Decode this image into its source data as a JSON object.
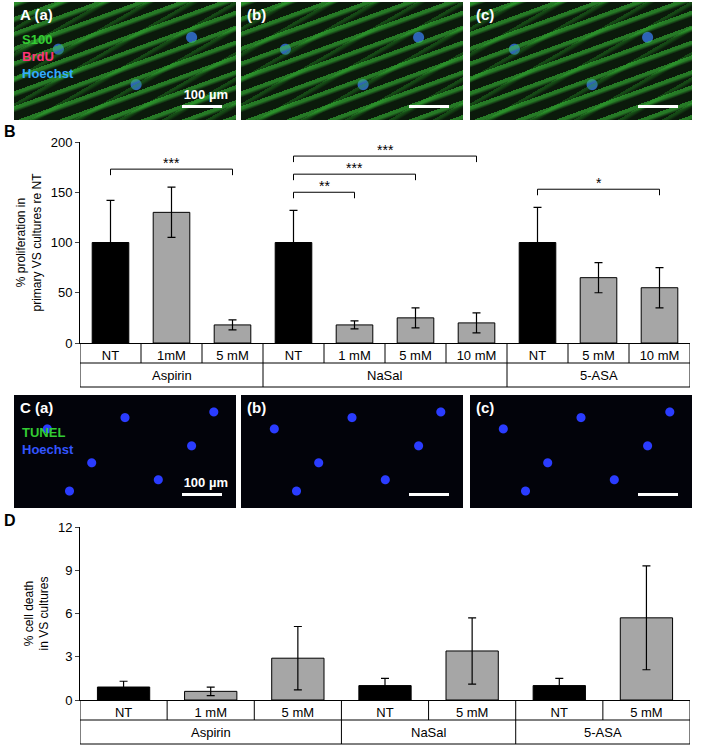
{
  "image_panels": [
    {
      "label": "A",
      "images": [
        "(a)",
        "(b)",
        "(c)"
      ],
      "stains": [
        {
          "name": "S100",
          "color": "#33cc33"
        },
        {
          "name": "BrdU",
          "color": "#ff3377"
        },
        {
          "name": "Hoechst",
          "color": "#33aaff"
        }
      ],
      "scale_bar": "100 µm"
    },
    {
      "label": "C",
      "images": [
        "(a)",
        "(b)",
        "(c)"
      ],
      "stains": [
        {
          "name": "TUNEL",
          "color": "#33cc33"
        },
        {
          "name": "Hoechst",
          "color": "#3355ff"
        }
      ],
      "scale_bar": "100 µm"
    }
  ],
  "chart_data": [
    {
      "type": "bar",
      "panel": "B",
      "ylabel": "% proliferation in primary VS cultures re NT",
      "categories": [
        "NT",
        "1mM",
        "5 mM",
        "NT",
        "1 mM",
        "5 mM",
        "10 mM",
        "NT",
        "5 mM",
        "10 mM"
      ],
      "groups": [
        "Aspirin",
        "Aspirin",
        "Aspirin",
        "NaSal",
        "NaSal",
        "NaSal",
        "NaSal",
        "5-ASA",
        "5-ASA",
        "5-ASA"
      ],
      "values": [
        100,
        130,
        18,
        100,
        18,
        25,
        20,
        100,
        65,
        55
      ],
      "errors": [
        42,
        25,
        5,
        32,
        4,
        10,
        10,
        35,
        15,
        20
      ],
      "colors": [
        "#000000",
        "#a6a6a6",
        "#a6a6a6",
        "#000000",
        "#a6a6a6",
        "#a6a6a6",
        "#a6a6a6",
        "#000000",
        "#a6a6a6",
        "#a6a6a6"
      ],
      "ylim": [
        0,
        200
      ],
      "yticks": [
        0,
        50,
        100,
        150,
        200
      ],
      "significance": [
        {
          "from": 0,
          "to": 2,
          "label": "***"
        },
        {
          "from": 3,
          "to": 4,
          "label": "**"
        },
        {
          "from": 3,
          "to": 5,
          "label": "***"
        },
        {
          "from": 3,
          "to": 6,
          "label": "***"
        },
        {
          "from": 7,
          "to": 9,
          "label": "*"
        }
      ]
    },
    {
      "type": "bar",
      "panel": "D",
      "ylabel": "% cell death in VS cultures",
      "categories": [
        "NT",
        "1 mM",
        "5 mM",
        "NT",
        "5 mM",
        "NT",
        "5 mM"
      ],
      "groups": [
        "Aspirin",
        "Aspirin",
        "Aspirin",
        "NaSal",
        "NaSal",
        "5-ASA",
        "5-ASA"
      ],
      "values": [
        0.9,
        0.6,
        2.9,
        1.0,
        3.4,
        1.0,
        5.7
      ],
      "errors": [
        0.4,
        0.3,
        2.2,
        0.5,
        2.3,
        0.5,
        3.6
      ],
      "colors": [
        "#000000",
        "#a6a6a6",
        "#a6a6a6",
        "#000000",
        "#a6a6a6",
        "#000000",
        "#a6a6a6"
      ],
      "ylim": [
        0,
        12
      ],
      "yticks": [
        0,
        3,
        6,
        9,
        12
      ]
    }
  ]
}
